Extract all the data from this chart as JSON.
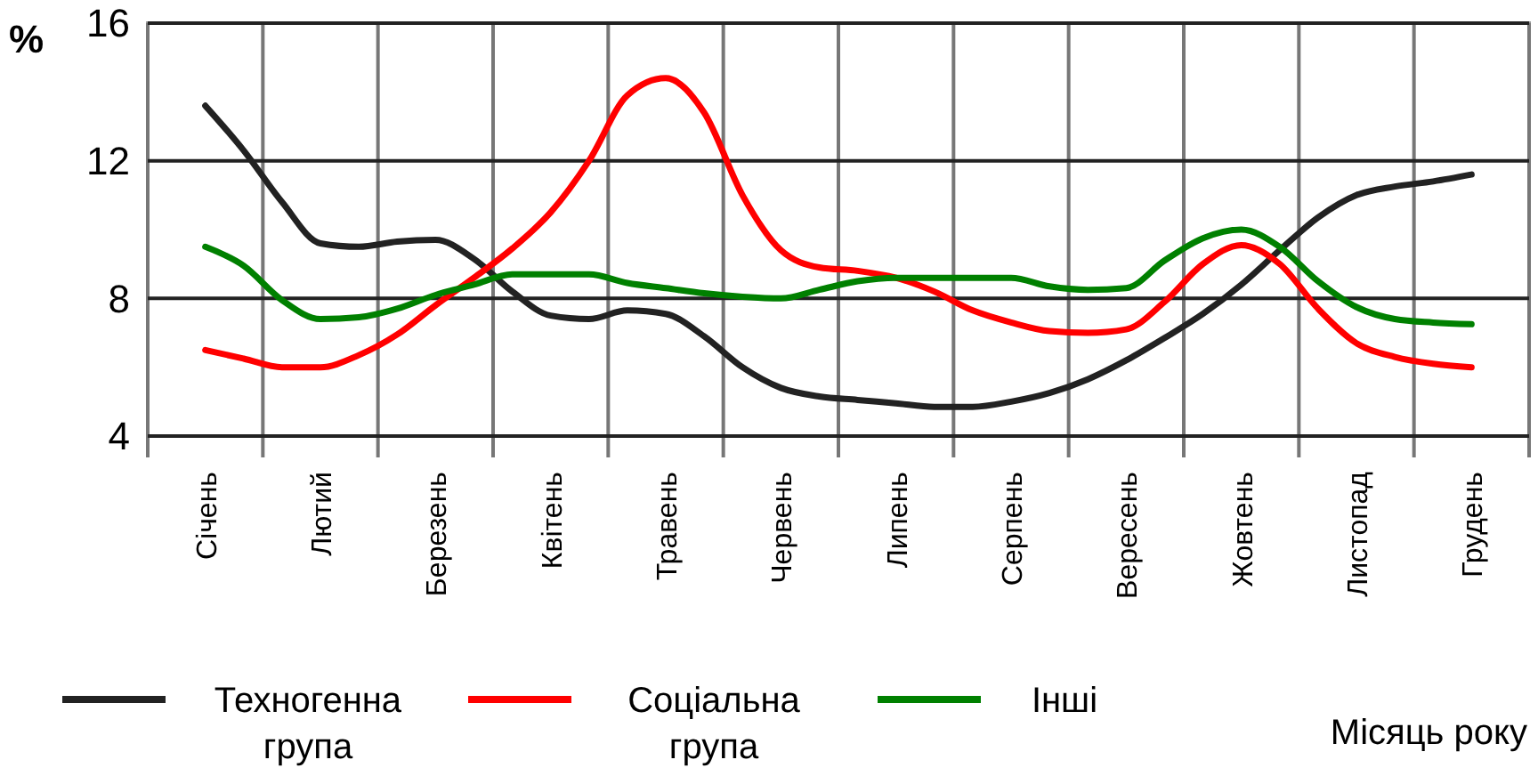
{
  "chart_data": {
    "type": "line",
    "xlabel": "Місяць року",
    "ylabel": "%",
    "categories": [
      "Січень",
      null,
      null,
      "Лютий",
      null,
      null,
      "Березень",
      null,
      null,
      "Квітень",
      null,
      null,
      "Травень",
      null,
      null,
      "Червень",
      null,
      null,
      "Липень",
      null,
      null,
      "Серпень",
      null,
      null,
      "Вересень",
      null,
      null,
      "Жовтень",
      null,
      null,
      "Листопад",
      null,
      null,
      "Грудень"
    ],
    "ylim": [
      4,
      16
    ],
    "yticks": [
      4,
      8,
      12,
      16
    ],
    "grid": true,
    "legend": "bottom",
    "marker": "none",
    "line_style": "solid",
    "series": [
      {
        "name": "Техногенна група",
        "color": "#222222",
        "values": [
          13.6,
          12.3,
          10.8,
          9.6,
          9.5,
          9.65,
          9.7,
          9.15,
          8.2,
          7.5,
          7.4,
          7.65,
          7.55,
          6.9,
          6.0,
          5.4,
          5.15,
          5.05,
          4.95,
          4.85,
          4.85,
          5.0,
          5.25,
          5.65,
          6.2,
          6.85,
          7.55,
          8.4,
          9.4,
          10.35,
          11.0,
          11.25,
          11.4,
          11.6
        ]
      },
      {
        "name": "Соціальна група",
        "color": "#ff0000",
        "values": [
          6.5,
          6.25,
          6.0,
          6.0,
          6.35,
          6.95,
          7.8,
          8.6,
          9.45,
          10.5,
          12.0,
          13.9,
          14.4,
          13.4,
          11.0,
          9.4,
          8.9,
          8.8,
          8.6,
          8.2,
          7.65,
          7.3,
          7.05,
          7.0,
          7.1,
          7.9,
          9.0,
          9.55,
          9.0,
          7.7,
          6.7,
          6.3,
          6.1,
          6.0
        ]
      },
      {
        "name": "Інші",
        "color": "#008000",
        "values": [
          9.5,
          8.95,
          7.95,
          7.4,
          7.45,
          7.7,
          8.1,
          8.4,
          8.7,
          8.7,
          8.7,
          8.45,
          8.3,
          8.15,
          8.05,
          8.0,
          8.25,
          8.5,
          8.6,
          8.6,
          8.6,
          8.6,
          8.35,
          8.25,
          8.3,
          9.1,
          9.75,
          10.0,
          9.5,
          8.5,
          7.75,
          7.4,
          7.3,
          7.25
        ]
      }
    ]
  }
}
